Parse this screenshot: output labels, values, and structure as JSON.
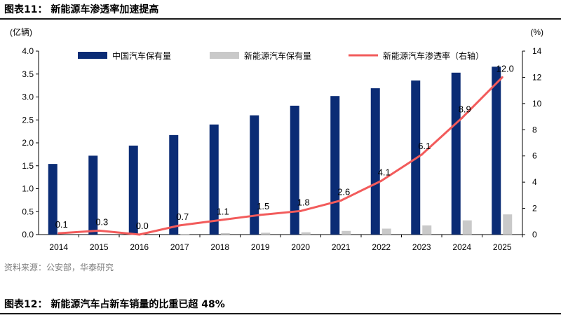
{
  "figure": {
    "title": "图表11：  新能源车渗透率加速提高",
    "source": "资料来源：公安部，华泰研究",
    "next_title": "图表12：  新能源汽车占新车销量的比重已超 48%"
  },
  "colors": {
    "bar_total": "#0b2c75",
    "bar_nev": "#c9c9c9",
    "line_rate": "#f25b5b",
    "axis": "#000000"
  },
  "chart_data": {
    "type": "bar",
    "categories": [
      "2014",
      "2015",
      "2016",
      "2017",
      "2018",
      "2019",
      "2020",
      "2021",
      "2022",
      "2023",
      "2024",
      "2025"
    ],
    "ylabel_left": "(亿辆)",
    "ylabel_right": "(%)",
    "ylim_left": [
      0,
      4.0
    ],
    "ylim_right": [
      0,
      14
    ],
    "yticks_left": [
      "0.0",
      "0.5",
      "1.0",
      "1.5",
      "2.0",
      "2.5",
      "3.0",
      "3.5",
      "4.0"
    ],
    "yticks_right": [
      "0",
      "2",
      "4",
      "6",
      "8",
      "10",
      "12",
      "14"
    ],
    "legend_position": "top",
    "grid": false,
    "series": [
      {
        "name": "中国汽车保有量",
        "kind": "bar",
        "axis": "left",
        "values": [
          1.54,
          1.72,
          1.94,
          2.17,
          2.4,
          2.6,
          2.81,
          3.02,
          3.19,
          3.36,
          3.53,
          3.66
        ]
      },
      {
        "name": "新能源汽车保有量",
        "kind": "bar",
        "axis": "left",
        "values": [
          0.0,
          0.0,
          0.0,
          0.01,
          0.03,
          0.04,
          0.05,
          0.08,
          0.13,
          0.2,
          0.31,
          0.44
        ]
      },
      {
        "name": "新能源汽车渗透率（右轴）",
        "kind": "line",
        "axis": "right",
        "values": [
          0.1,
          0.3,
          0.0,
          0.7,
          1.1,
          1.5,
          1.8,
          2.6,
          4.1,
          6.1,
          8.9,
          12.0
        ],
        "labels": [
          "0.1",
          "0.3",
          "0.0",
          "0.7",
          "1.1",
          "1.5",
          "1.8",
          "2.6",
          "4.1",
          "6.1",
          "8.9",
          "12.0"
        ]
      }
    ]
  }
}
